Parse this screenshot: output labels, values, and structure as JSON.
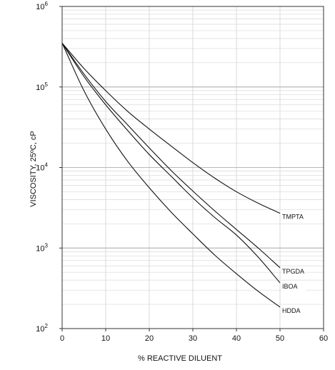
{
  "chart_data": {
    "type": "line",
    "xlabel": "% REACTIVE DILUENT",
    "ylabel": "VISCOSITY, 25ºC, cP",
    "xlim": [
      0,
      60
    ],
    "ylim": [
      100,
      1000000
    ],
    "yscale": "log",
    "grid": true,
    "x_ticks": [
      0,
      10,
      20,
      30,
      40,
      50,
      60
    ],
    "y_ticks": [
      {
        "value": 100,
        "base": "10",
        "exp": "2"
      },
      {
        "value": 1000,
        "base": "10",
        "exp": "3"
      },
      {
        "value": 10000,
        "base": "10",
        "exp": "4"
      },
      {
        "value": 100000,
        "base": "10",
        "exp": "5"
      },
      {
        "value": 1000000,
        "base": "10",
        "exp": "6"
      }
    ],
    "series": [
      {
        "name": "TMPTA",
        "x": [
          0,
          5,
          10,
          15,
          20,
          25,
          30,
          35,
          40,
          45,
          50
        ],
        "y": [
          350000,
          170000,
          90000,
          50000,
          30000,
          18500,
          11500,
          7400,
          5000,
          3600,
          2700
        ]
      },
      {
        "name": "TPGDA",
        "x": [
          0,
          5,
          10,
          15,
          20,
          25,
          30,
          35,
          40,
          45,
          50
        ],
        "y": [
          350000,
          145000,
          66000,
          34000,
          17500,
          9200,
          5100,
          2900,
          1700,
          1000,
          570
        ]
      },
      {
        "name": "IBOA",
        "x": [
          0,
          5,
          10,
          15,
          20,
          25,
          30,
          35,
          40,
          45,
          50
        ],
        "y": [
          350000,
          135000,
          60000,
          29000,
          14500,
          7800,
          4200,
          2400,
          1450,
          770,
          370
        ]
      },
      {
        "name": "HDDA",
        "x": [
          0,
          5,
          10,
          15,
          20,
          25,
          30,
          35,
          40,
          45,
          50
        ],
        "y": [
          350000,
          90000,
          30000,
          12000,
          5600,
          2800,
          1500,
          820,
          480,
          290,
          185
        ]
      }
    ]
  }
}
